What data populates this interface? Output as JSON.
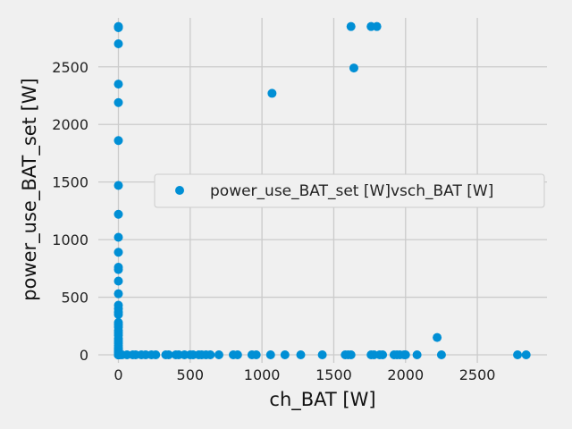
{
  "chart_data": {
    "type": "scatter",
    "xlabel": "ch_BAT [W]",
    "ylabel": "power_use_BAT_set [W]",
    "xlim": [
      -140,
      2985
    ],
    "ylim": [
      -70,
      2925
    ],
    "xticks": [
      0,
      500,
      1000,
      1500,
      2000,
      2500
    ],
    "yticks": [
      0,
      500,
      1000,
      1500,
      2000,
      2500
    ],
    "grid": true,
    "legend_position": "center-right",
    "colors": {
      "background": "#f0f0f0",
      "grid": "#cbcbcb",
      "series": "#008fd5"
    },
    "series": [
      {
        "name": "power_use_BAT_set [W]vsch_BAT [W]",
        "x": [
          0,
          0,
          0,
          0,
          0,
          0,
          0,
          0,
          0,
          0,
          0,
          0,
          0,
          0,
          0,
          0,
          0,
          0,
          0,
          0,
          0,
          0,
          0,
          0,
          0,
          0,
          0,
          0,
          0,
          0,
          0,
          0,
          0,
          0,
          0,
          0,
          0,
          0,
          0,
          0,
          0,
          0,
          0,
          0,
          0,
          10,
          25,
          60,
          100,
          120,
          160,
          190,
          230,
          260,
          330,
          350,
          400,
          420,
          460,
          500,
          520,
          560,
          580,
          610,
          640,
          700,
          800,
          830,
          930,
          960,
          1060,
          1160,
          1270,
          1420,
          1580,
          1600,
          1620,
          1760,
          1780,
          1820,
          1840,
          1920,
          1940,
          1960,
          1990,
          2000,
          2080,
          2250,
          2780,
          2840,
          2220,
          1070,
          1620,
          1640,
          1760,
          1800
        ],
        "y": [
          2850,
          2840,
          2845,
          2700,
          2350,
          2190,
          1860,
          1470,
          1220,
          1020,
          890,
          760,
          740,
          640,
          530,
          430,
          400,
          370,
          350,
          280,
          260,
          240,
          210,
          190,
          170,
          140,
          120,
          100,
          80,
          60,
          50,
          40,
          30,
          20,
          15,
          10,
          5,
          3,
          1,
          0,
          0,
          0,
          0,
          0,
          0,
          0,
          0,
          0,
          0,
          0,
          0,
          0,
          0,
          0,
          0,
          0,
          0,
          0,
          0,
          0,
          0,
          0,
          0,
          0,
          0,
          0,
          0,
          0,
          0,
          0,
          0,
          0,
          0,
          0,
          0,
          0,
          0,
          0,
          0,
          0,
          0,
          0,
          0,
          0,
          0,
          0,
          0,
          0,
          0,
          0,
          150,
          2270,
          2850,
          2490,
          2850,
          2850
        ]
      }
    ]
  }
}
